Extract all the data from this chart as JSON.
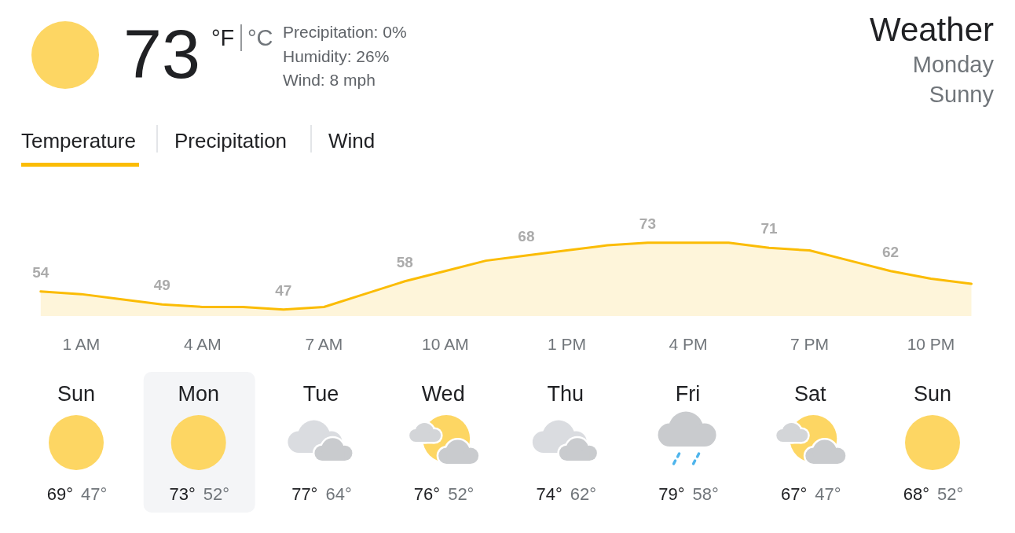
{
  "chart_data": [
    {
      "type": "other",
      "title": "Weather",
      "subtitle": "Monday",
      "annotations": [
        "Sunny",
        "73",
        "°F",
        "°C",
        "Precipitation: 0%",
        "Humidity: 26%",
        "Wind: 8 mph",
        "Temperature",
        "Precipitation",
        "Wind"
      ]
    },
    {
      "type": "area",
      "categories": [
        null,
        "1 AM",
        null,
        null,
        "4 AM",
        null,
        null,
        "7 AM",
        null,
        null,
        "10 AM",
        null,
        null,
        "1 PM",
        null,
        null,
        "4 PM",
        null,
        null,
        "7 PM",
        null,
        null,
        "10 PM",
        null
      ],
      "values": [
        54,
        53,
        51,
        49,
        48,
        48,
        47,
        48,
        53,
        58,
        62,
        66,
        68,
        70,
        72,
        73,
        73,
        73,
        71,
        70,
        66,
        62,
        59,
        57
      ],
      "value_labels": [
        "54",
        null,
        null,
        "49",
        null,
        null,
        "47",
        null,
        null,
        "58",
        null,
        null,
        "68",
        null,
        null,
        "73",
        null,
        null,
        "71",
        null,
        null,
        "62",
        null,
        null
      ],
      "color": "#fbbc04",
      "tick_labels": "x"
    },
    {
      "type": "other",
      "categories": [
        "Sun",
        "Mon",
        "Tue",
        "Wed",
        "Thu",
        "Fri",
        "Sat",
        "Sun"
      ],
      "annotations": [
        "69°",
        "47°",
        "73°",
        "52°",
        "77°",
        "64°",
        "76°",
        "52°",
        "74°",
        "62°",
        "79°",
        "58°",
        "67°",
        "47°",
        "68°",
        "52°"
      ]
    }
  ]
}
